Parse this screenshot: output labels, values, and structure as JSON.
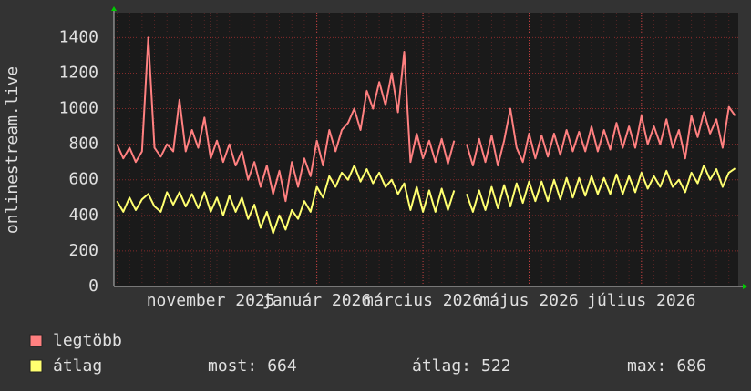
{
  "chart_data": {
    "type": "line",
    "y_label": "onlinestream.live",
    "categories": [
      null,
      null,
      null,
      null,
      null,
      null,
      null,
      null,
      null,
      null,
      null,
      null,
      null,
      null,
      null,
      "november 2025",
      null,
      null,
      null,
      null,
      null,
      null,
      null,
      null,
      null,
      null,
      null,
      null,
      null,
      null,
      null,
      null,
      "január 2026",
      null,
      null,
      null,
      null,
      null,
      null,
      null,
      null,
      null,
      null,
      null,
      null,
      null,
      null,
      null,
      null,
      "március 2026",
      null,
      null,
      null,
      null,
      null,
      null,
      null,
      null,
      null,
      null,
      null,
      null,
      null,
      null,
      null,
      null,
      "május 2026",
      null,
      null,
      null,
      null,
      null,
      null,
      null,
      null,
      null,
      null,
      null,
      null,
      null,
      null,
      null,
      null,
      null,
      "július 2026",
      null,
      null,
      null,
      null,
      null,
      null,
      null,
      null,
      null,
      null,
      null,
      null,
      null,
      null,
      null
    ],
    "series": [
      {
        "name": "legtöbb",
        "color": "#ff8080",
        "values": [
          800,
          720,
          780,
          700,
          760,
          1400,
          780,
          730,
          800,
          760,
          1050,
          760,
          880,
          780,
          950,
          720,
          820,
          700,
          800,
          680,
          760,
          600,
          700,
          560,
          680,
          520,
          650,
          480,
          700,
          560,
          720,
          620,
          820,
          680,
          880,
          760,
          880,
          920,
          1000,
          880,
          1100,
          1000,
          1150,
          1020,
          1200,
          980,
          1320,
          700,
          860,
          720,
          820,
          700,
          830,
          690,
          820,
          null,
          800,
          680,
          830,
          700,
          850,
          680,
          820,
          1000,
          780,
          700,
          860,
          720,
          850,
          730,
          860,
          740,
          880,
          760,
          870,
          760,
          900,
          760,
          880,
          770,
          920,
          780,
          900,
          780,
          960,
          800,
          900,
          800,
          940,
          780,
          880,
          720,
          960,
          840,
          980,
          860,
          940,
          780,
          1010,
          960
        ]
      },
      {
        "name": "átlag",
        "color": "#ffff70",
        "values": [
          480,
          420,
          500,
          430,
          490,
          520,
          450,
          420,
          530,
          460,
          530,
          450,
          520,
          440,
          530,
          420,
          500,
          400,
          510,
          420,
          500,
          380,
          460,
          330,
          420,
          300,
          400,
          320,
          430,
          380,
          480,
          420,
          560,
          500,
          620,
          560,
          640,
          600,
          680,
          590,
          660,
          580,
          640,
          560,
          600,
          520,
          580,
          430,
          560,
          420,
          540,
          420,
          550,
          430,
          540,
          null,
          520,
          420,
          540,
          430,
          560,
          440,
          570,
          450,
          580,
          470,
          590,
          480,
          590,
          480,
          600,
          490,
          610,
          500,
          610,
          510,
          620,
          520,
          610,
          520,
          630,
          520,
          620,
          530,
          640,
          550,
          620,
          560,
          650,
          560,
          600,
          530,
          640,
          580,
          680,
          600,
          660,
          560,
          640,
          664
        ]
      }
    ],
    "stats": [
      {
        "label": "most:",
        "value": 664
      },
      {
        "label": "átlag:",
        "value": 522
      },
      {
        "label": "max:",
        "value": 686
      }
    ],
    "ylim": [
      0,
      1540
    ],
    "yticks": [
      0,
      200,
      400,
      600,
      800,
      1000,
      1200,
      1400
    ],
    "grid": true
  }
}
